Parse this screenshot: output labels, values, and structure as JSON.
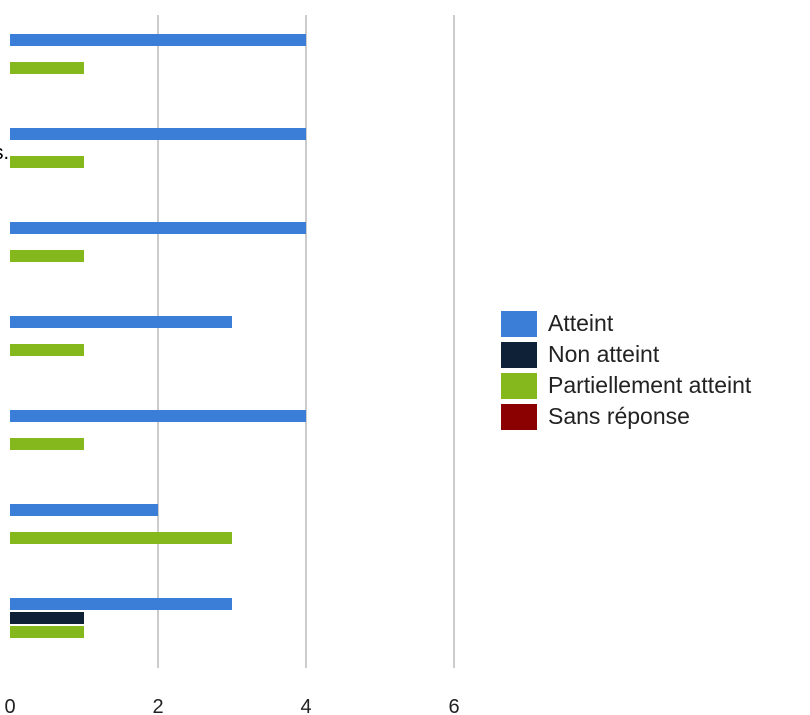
{
  "chart_data": {
    "type": "bar",
    "orientation": "horizontal",
    "clipped_label_fragment": "s.",
    "categories": [
      "",
      "",
      "",
      "",
      "",
      "",
      ""
    ],
    "series": [
      {
        "name": "Atteint",
        "color": "#3a7ed8",
        "values": [
          4,
          4,
          4,
          3,
          4,
          2,
          3
        ]
      },
      {
        "name": "Non atteint",
        "color": "#0f2136",
        "values": [
          0,
          0,
          0,
          0,
          0,
          0,
          1
        ]
      },
      {
        "name": "Partiellement atteint",
        "color": "#85b81d",
        "values": [
          1,
          1,
          1,
          1,
          1,
          3,
          1
        ]
      },
      {
        "name": "Sans réponse",
        "color": "#8b0000",
        "values": [
          0,
          0,
          0,
          0,
          0,
          0,
          0
        ]
      }
    ],
    "xlim": [
      0,
      6
    ],
    "xticks": [
      "0",
      "2",
      "4",
      "6"
    ],
    "grid": true,
    "legend_position": "right"
  }
}
